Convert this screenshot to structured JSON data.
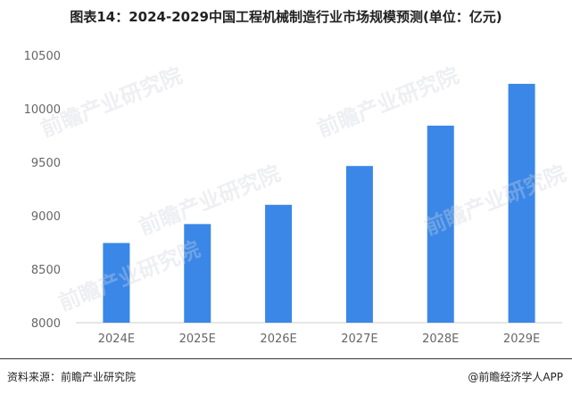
{
  "title": "图表14：2024-2029中国工程机械制造行业市场规模预测(单位：亿元)",
  "footer": {
    "source": "资料来源：前瞻产业研究院",
    "brand": "@前瞻经济学人APP"
  },
  "watermark": "前瞻产业研究院",
  "colors": {
    "bar": "#3a87e8",
    "axis": "#cccccc",
    "tick_label": "#666666"
  },
  "chart_data": {
    "type": "bar",
    "title": "图表14：2024-2029中国工程机械制造行业市场规模预测(单位：亿元)",
    "categories": [
      "2024E",
      "2025E",
      "2026E",
      "2027E",
      "2028E",
      "2029E"
    ],
    "values": [
      8745,
      8922,
      9102,
      9465,
      9842,
      10233
    ],
    "ylim": [
      8000,
      10500
    ],
    "yticks": [
      8000,
      8500,
      9000,
      9500,
      10000,
      10500
    ],
    "grid": false,
    "legend": "none"
  }
}
